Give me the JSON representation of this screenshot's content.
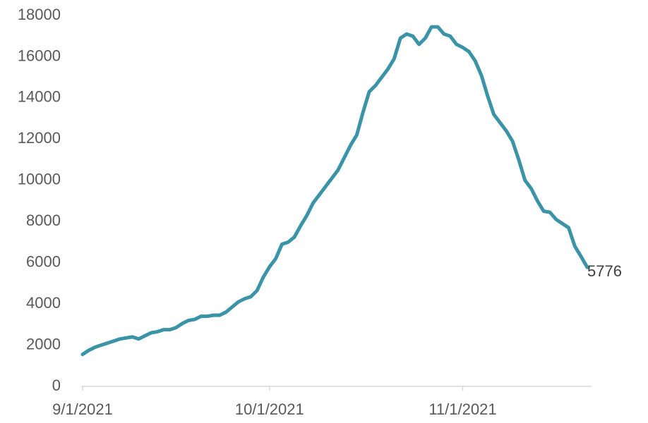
{
  "chart_data": {
    "type": "line",
    "color": "#3b93a8",
    "x": [
      "9/1/2021",
      "9/2/2021",
      "9/3/2021",
      "9/4/2021",
      "9/5/2021",
      "9/6/2021",
      "9/7/2021",
      "9/8/2021",
      "9/9/2021",
      "9/10/2021",
      "9/11/2021",
      "9/12/2021",
      "9/13/2021",
      "9/14/2021",
      "9/15/2021",
      "9/16/2021",
      "9/17/2021",
      "9/18/2021",
      "9/19/2021",
      "9/20/2021",
      "9/21/2021",
      "9/22/2021",
      "9/23/2021",
      "9/24/2021",
      "9/25/2021",
      "9/26/2021",
      "9/27/2021",
      "9/28/2021",
      "9/29/2021",
      "9/30/2021",
      "10/1/2021",
      "10/2/2021",
      "10/3/2021",
      "10/4/2021",
      "10/5/2021",
      "10/6/2021",
      "10/7/2021",
      "10/8/2021",
      "10/9/2021",
      "10/10/2021",
      "10/11/2021",
      "10/12/2021",
      "10/13/2021",
      "10/14/2021",
      "10/15/2021",
      "10/16/2021",
      "10/17/2021",
      "10/18/2021",
      "10/19/2021",
      "10/20/2021",
      "10/21/2021",
      "10/22/2021",
      "10/23/2021",
      "10/24/2021",
      "10/25/2021",
      "10/26/2021",
      "10/27/2021",
      "10/28/2021",
      "10/29/2021",
      "10/30/2021",
      "10/31/2021",
      "11/1/2021",
      "11/2/2021",
      "11/3/2021",
      "11/4/2021",
      "11/5/2021",
      "11/6/2021",
      "11/7/2021",
      "11/8/2021",
      "11/9/2021",
      "11/10/2021",
      "11/11/2021",
      "11/12/2021",
      "11/13/2021",
      "11/14/2021",
      "11/15/2021",
      "11/16/2021",
      "11/17/2021",
      "11/18/2021",
      "11/19/2021",
      "11/20/2021",
      "11/21/2021"
    ],
    "values": [
      1550,
      1750,
      1900,
      2000,
      2100,
      2200,
      2300,
      2350,
      2400,
      2300,
      2450,
      2600,
      2650,
      2750,
      2750,
      2850,
      3050,
      3200,
      3250,
      3400,
      3400,
      3450,
      3450,
      3600,
      3850,
      4100,
      4250,
      4350,
      4650,
      5300,
      5800,
      6200,
      6900,
      7000,
      7250,
      7800,
      8300,
      8900,
      9300,
      9700,
      10100,
      10500,
      11100,
      11700,
      12200,
      13300,
      14300,
      14600,
      15000,
      15400,
      15900,
      16900,
      17100,
      17000,
      16600,
      16900,
      17450,
      17450,
      17100,
      17000,
      16600,
      16450,
      16250,
      15800,
      15100,
      14100,
      13200,
      12800,
      12400,
      11900,
      11000,
      10000,
      9600,
      9000,
      8500,
      8450,
      8100,
      7900,
      7700,
      6800,
      6300,
      5776
    ],
    "xlim": [
      "9/1/2021",
      "11/21/2021"
    ],
    "xticks": [
      "9/1/2021",
      "10/1/2021",
      "11/1/2021"
    ],
    "ylim": [
      0,
      18000
    ],
    "yticks": [
      0,
      2000,
      4000,
      6000,
      8000,
      10000,
      12000,
      14000,
      16000,
      18000
    ]
  }
}
